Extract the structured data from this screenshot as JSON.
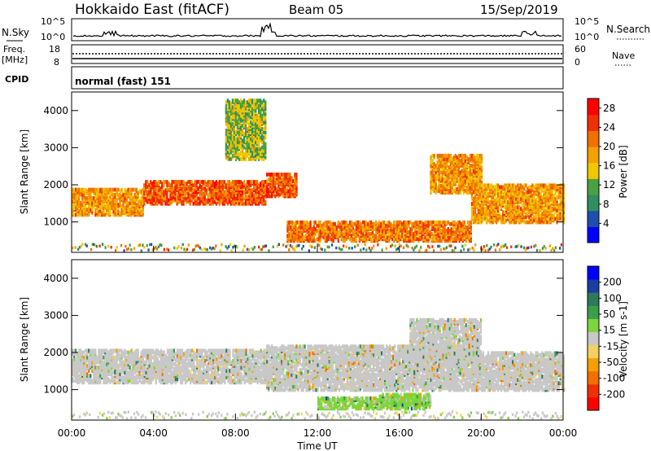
{
  "header": {
    "radar": "Hokkaido East (fitACF)",
    "beam": "Beam 05",
    "date": "15/Sep/2019"
  },
  "noise_panel": {
    "left_label": "N.Sky",
    "right_label": "N.Search",
    "tick_top": "10^5",
    "tick_bottom": "10^0"
  },
  "freq_panel": {
    "left_label_top": "Freq.",
    "left_label_unit": "[MHz]",
    "left_tick_top": "18",
    "left_tick_bottom": "8",
    "right_label": "Nave",
    "right_tick_top": "60",
    "right_tick_bottom": "0"
  },
  "cpid_panel": {
    "label": "CPID",
    "mode": "normal (fast) 151"
  },
  "colors": {
    "power": [
      "#0000ff",
      "#1f4fae",
      "#2f8f60",
      "#4aa043",
      "#f0c800",
      "#f5a000",
      "#f07000",
      "#f03000",
      "#ff0000"
    ],
    "velocity": [
      "#ff0000",
      "#f03000",
      "#f07000",
      "#f5a000",
      "#f5d060",
      "#c8c8c8",
      "#7cd63c",
      "#3a9e4a",
      "#2c7a5a",
      "#1a3fa0",
      "#0000ff"
    ]
  },
  "chart_data": [
    {
      "type": "heatmap",
      "name": "power",
      "ylabel": "Slant Range [km]",
      "x_ticks": [
        "00:00",
        "04:00",
        "08:00",
        "12:00",
        "16:00",
        "20:00",
        "00:00"
      ],
      "y_ticks": [
        "1000",
        "2000",
        "3000",
        "4000"
      ],
      "xlim_hours": [
        0,
        24
      ],
      "ylim_km": [
        180,
        4500
      ],
      "colorbar": {
        "label": "Power [dB]",
        "ticks": [
          "4",
          "8",
          "12",
          "16",
          "20",
          "24",
          "28"
        ],
        "range": [
          0,
          30
        ]
      },
      "echo_bands": [
        {
          "t": [
            0,
            3.5
          ],
          "r": [
            1200,
            1900
          ],
          "value": 24
        },
        {
          "t": [
            3.5,
            9.5
          ],
          "r": [
            1500,
            2100
          ],
          "value": 28
        },
        {
          "t": [
            9.5,
            11
          ],
          "r": [
            1700,
            2300
          ],
          "value": 28
        },
        {
          "t": [
            10.5,
            19.5
          ],
          "r": [
            500,
            1000
          ],
          "value": 26
        },
        {
          "t": [
            17.5,
            20
          ],
          "r": [
            1800,
            2800
          ],
          "value": 24
        },
        {
          "t": [
            19.5,
            24
          ],
          "r": [
            1000,
            2000
          ],
          "value": 24
        },
        {
          "t": [
            7.5,
            9.5
          ],
          "r": [
            2700,
            4300
          ],
          "value": 18
        }
      ]
    },
    {
      "type": "heatmap",
      "name": "velocity",
      "ylabel": "Slant Range [km]",
      "x_ticks": [
        "00:00",
        "04:00",
        "08:00",
        "12:00",
        "16:00",
        "20:00",
        "00:00"
      ],
      "xlabel": "Time UT",
      "y_ticks": [
        "1000",
        "2000",
        "3000",
        "4000"
      ],
      "xlim_hours": [
        0,
        24
      ],
      "ylim_km": [
        180,
        4500
      ],
      "colorbar": {
        "label": "Velocity [m s-1]",
        "ticks": [
          "200",
          "100",
          "50",
          "15",
          "-15",
          "-50",
          "-100",
          "-200"
        ],
        "range": [
          -250,
          250
        ]
      },
      "echo_bands": [
        {
          "t": [
            0,
            9.5
          ],
          "r": [
            1200,
            2100
          ],
          "value": 0
        },
        {
          "t": [
            9.5,
            19.5
          ],
          "r": [
            1000,
            2200
          ],
          "value": 0
        },
        {
          "t": [
            12,
            17.5
          ],
          "r": [
            500,
            800
          ],
          "value": 30
        },
        {
          "t": [
            15,
            17.5
          ],
          "r": [
            600,
            900
          ],
          "value": 30
        },
        {
          "t": [
            16.5,
            20
          ],
          "r": [
            1800,
            2900
          ],
          "value": 0
        },
        {
          "t": [
            19.5,
            24
          ],
          "r": [
            1000,
            2000
          ],
          "value": 0
        }
      ]
    }
  ]
}
